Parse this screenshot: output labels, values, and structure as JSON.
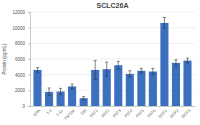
{
  "chart_data": {
    "type": "bar",
    "title": "SCLC26A",
    "y_label": "Protein (pg/mL)",
    "categories": [
      "EPA",
      "T-4",
      "T-3+",
      "FMT04",
      "Ctrl",
      "P0T1",
      "P0T2",
      "P0T3",
      "P0T4",
      "P0T5",
      "P0T6",
      "DCF1",
      "DCF2",
      "DCF3"
    ],
    "values": [
      4600,
      1800,
      1850,
      2500,
      1000,
      4600,
      4700,
      5200,
      4100,
      4500,
      4400,
      10600,
      5500,
      5800
    ],
    "errors": [
      300,
      500,
      400,
      300,
      200,
      1200,
      900,
      500,
      400,
      300,
      400,
      700,
      400,
      300
    ],
    "color": "#3b6fbf",
    "ylim": [
      0,
      12000
    ],
    "yticks": [
      0,
      2000,
      4000,
      6000,
      8000,
      10000,
      12000
    ],
    "grid": true
  }
}
